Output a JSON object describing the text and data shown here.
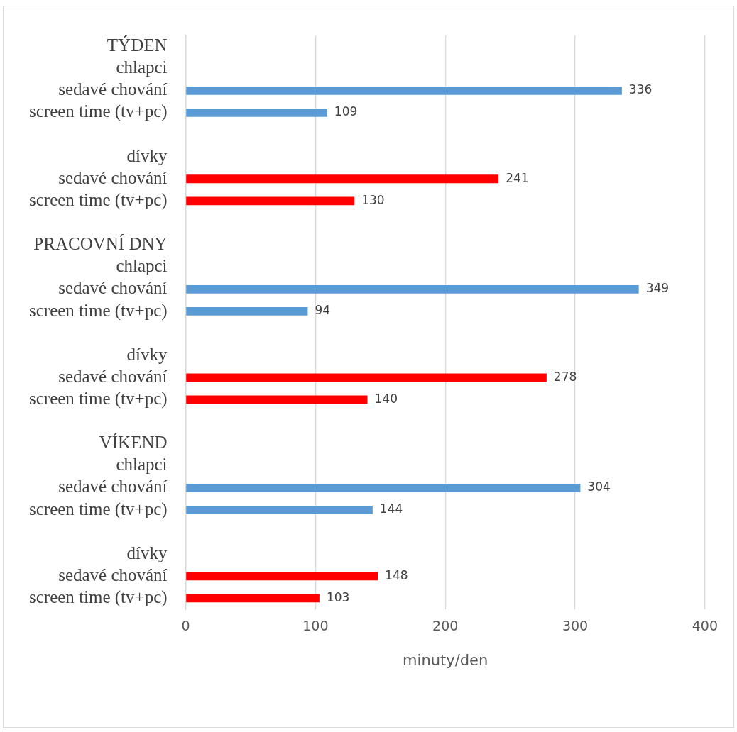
{
  "chart_data": {
    "type": "bar",
    "orientation": "horizontal",
    "xlabel": "minuty/den",
    "categories": [
      "TÝDEN",
      "chlapci",
      "sedavé chování",
      "screen time (tv+pc)",
      null,
      "dívky",
      "sedavé chování",
      "screen time (tv+pc)",
      null,
      "PRACOVNÍ DNY",
      "chlapci",
      "sedavé chování",
      "screen time (tv+pc)",
      null,
      "dívky",
      "sedavé chování",
      "screen time (tv+pc)",
      null,
      "VÍKEND",
      "chlapci",
      "sedavé chování",
      "screen time (tv+pc)",
      null,
      "dívky",
      "sedavé chování",
      "screen time (tv+pc)"
    ],
    "values": [
      null,
      null,
      336,
      109,
      null,
      null,
      241,
      130,
      null,
      null,
      null,
      349,
      94,
      null,
      null,
      278,
      140,
      null,
      null,
      null,
      304,
      144,
      null,
      null,
      148,
      103
    ],
    "colors": [
      "#5b9bd5",
      "#5b9bd5",
      "#5b9bd5",
      "#5b9bd5",
      "#ff0000",
      "#ff0000",
      "#ff0000",
      "#ff0000",
      "#5b9bd5",
      "#5b9bd5",
      "#5b9bd5",
      "#5b9bd5",
      "#5b9bd5",
      "#ff0000",
      "#ff0000",
      "#ff0000",
      "#ff0000",
      "#5b9bd5",
      "#5b9bd5",
      "#5b9bd5",
      "#5b9bd5",
      "#5b9bd5",
      "#ff0000",
      "#ff0000",
      "#ff0000",
      "#ff0000"
    ],
    "xlim": [
      0,
      400
    ],
    "xticks": [
      0,
      100,
      200,
      300,
      400
    ],
    "grid": "x",
    "data_labels": true,
    "legend": false
  }
}
